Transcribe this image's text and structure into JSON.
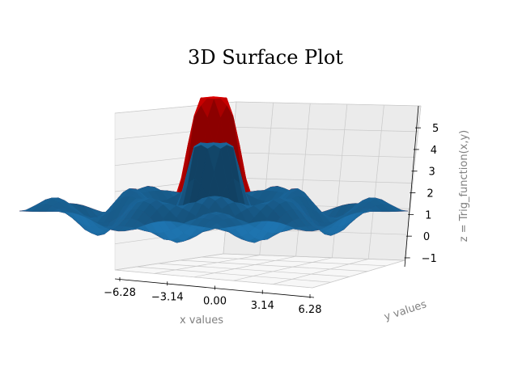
{
  "chart_data": {
    "type": "surface3d",
    "title": "3D Surface Plot",
    "xlabel": "x values",
    "ylabel": "y values",
    "zlabel": "z = Trig_function(x,y)",
    "x_ticks": [
      "−6.28",
      "−3.14",
      "0.00",
      "3.14",
      "6.28"
    ],
    "z_ticks": [
      "−1",
      "0",
      "1",
      "2",
      "3",
      "4",
      "5"
    ],
    "xlim": [
      -6.28,
      6.28
    ],
    "ylim": [
      -6.28,
      6.28
    ],
    "zlim": [
      -1.3,
      5.9
    ],
    "grid": true,
    "series": [
      {
        "color": "#ff0000",
        "z_peak": 5.7,
        "z_floor": -1.0
      },
      {
        "color": "#1f77b4",
        "z_peak": 3.8,
        "z_floor": -0.6
      }
    ],
    "colors": {
      "pane_left": "#f2f2f2",
      "pane_back": "#ebebeb",
      "pane_floor": "#f7f7f7",
      "grid": "#c8c8c8"
    }
  }
}
